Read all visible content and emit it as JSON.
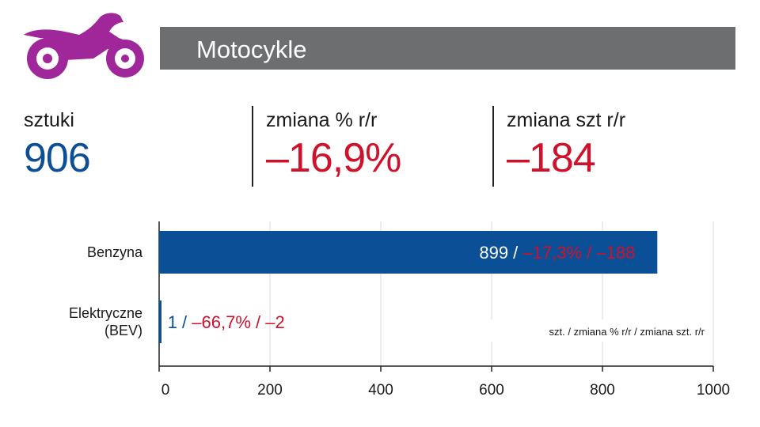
{
  "colors": {
    "title_bg": "#6d6e70",
    "icon": "#a0279a",
    "blue": "#0b4f96",
    "red": "#d0112b",
    "grid": "#d9d9d9",
    "axis": "#222222"
  },
  "header": {
    "icon": "motorcycle-icon",
    "title": "Motocykle"
  },
  "kpis": {
    "units_label": "sztuki",
    "units_value": "906",
    "pct_label": "zmiana % r/r",
    "pct_value": "–16,9%",
    "abs_label": "zmiana szt r/r",
    "abs_value": "–184"
  },
  "chart_data": {
    "type": "bar",
    "orientation": "horizontal",
    "categories": [
      "Benzyna",
      "Elektryczne (BEV)"
    ],
    "category_lines": [
      [
        "Benzyna"
      ],
      [
        "Elektryczne",
        "(BEV)"
      ]
    ],
    "values": [
      899,
      1
    ],
    "changes_pct": [
      "–17,3%",
      "–66,7%"
    ],
    "changes_abs": [
      "–188",
      "–2"
    ],
    "xlim": [
      0,
      1000
    ],
    "xticks": [
      0,
      200,
      400,
      600,
      800,
      1000
    ],
    "grid": true,
    "legend_note": "szt. / zmiana % r/r / zmiana szt. r/r",
    "legend_position": "bottom-right"
  }
}
